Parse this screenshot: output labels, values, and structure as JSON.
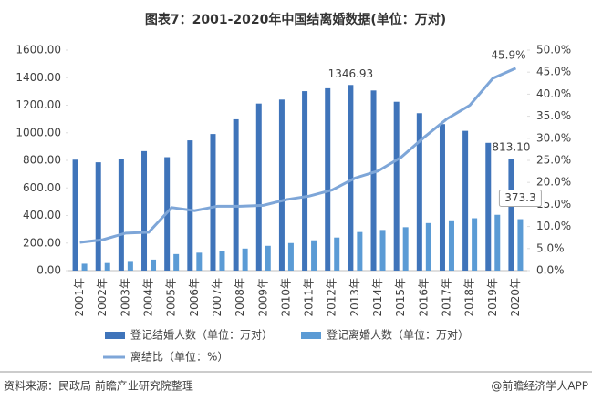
{
  "chart_data": {
    "type": "bar-line",
    "title": "图表7：2001-2020年中国结离婚数据(单位：万对)",
    "categories": [
      "2001年",
      "2002年",
      "2003年",
      "2004年",
      "2005年",
      "2006年",
      "2007年",
      "2008年",
      "2009年",
      "2010年",
      "2011年",
      "2012年",
      "2013年",
      "2014年",
      "2015年",
      "2016年",
      "2017年",
      "2018年",
      "2019年",
      "2020年"
    ],
    "series": [
      {
        "name": "登记结婚人数（单位：万对）",
        "color": "#3f74ba",
        "kind": "bar",
        "values": [
          805,
          786,
          812,
          867,
          823,
          945,
          991,
          1098,
          1212,
          1241,
          1302,
          1323,
          1346.93,
          1307,
          1225,
          1142,
          1063,
          1014,
          927,
          813.1
        ],
        "value_labels": [
          null,
          null,
          null,
          null,
          null,
          null,
          null,
          null,
          null,
          null,
          null,
          null,
          "1346.93",
          null,
          null,
          null,
          null,
          null,
          null,
          "813.10"
        ]
      },
      {
        "name": "登记离婚人数（单位：万对）",
        "color": "#5b9bd5",
        "kind": "bar",
        "values": [
          50,
          55,
          70,
          80,
          120,
          130,
          140,
          160,
          180,
          200,
          220,
          240,
          280,
          295,
          315,
          345,
          365,
          380,
          405,
          373.3
        ],
        "value_labels": [
          null,
          null,
          null,
          null,
          null,
          null,
          null,
          null,
          null,
          null,
          null,
          null,
          null,
          null,
          null,
          null,
          null,
          null,
          null,
          "373.3"
        ]
      },
      {
        "name": "离结比（单位：%）",
        "color": "#7ea6d8",
        "kind": "line",
        "axis": "y2",
        "values": [
          6.4,
          7.0,
          8.5,
          8.7,
          14.3,
          13.6,
          14.6,
          14.6,
          14.8,
          16.1,
          16.9,
          18.3,
          21.0,
          22.6,
          25.7,
          30.2,
          34.4,
          37.5,
          43.6,
          45.9
        ],
        "value_labels": [
          null,
          null,
          null,
          null,
          null,
          null,
          null,
          null,
          null,
          null,
          null,
          null,
          null,
          null,
          null,
          null,
          null,
          null,
          null,
          "45.9%"
        ]
      }
    ],
    "ylim": [
      0,
      1600
    ],
    "yticks": [
      {
        "value": 0,
        "label": "0.00"
      },
      {
        "value": 200,
        "label": "200.00"
      },
      {
        "value": 400,
        "label": "400.00"
      },
      {
        "value": 600,
        "label": "600.00"
      },
      {
        "value": 800,
        "label": "800.00"
      },
      {
        "value": 1000,
        "label": "1000.00"
      },
      {
        "value": 1200,
        "label": "1200.00"
      },
      {
        "value": 1400,
        "label": "1400.00"
      },
      {
        "value": 1600,
        "label": "1600.00"
      }
    ],
    "y2lim": [
      0,
      50
    ],
    "y2ticks": [
      {
        "value": 0,
        "label": "0.0%"
      },
      {
        "value": 5,
        "label": "5.0%"
      },
      {
        "value": 10,
        "label": "10.0%"
      },
      {
        "value": 15,
        "label": "15.0%"
      },
      {
        "value": 20,
        "label": "20.0%"
      },
      {
        "value": 25,
        "label": "25.0%"
      },
      {
        "value": 30,
        "label": "30.0%"
      },
      {
        "value": 35,
        "label": "35.0%"
      },
      {
        "value": 40,
        "label": "40.0%"
      },
      {
        "value": 45,
        "label": "45.0%"
      },
      {
        "value": 50,
        "label": "50.0%"
      }
    ],
    "source": "资料来源：民政局 前瞻产业研究院整理",
    "credit": "@前瞻经济学人APP"
  }
}
